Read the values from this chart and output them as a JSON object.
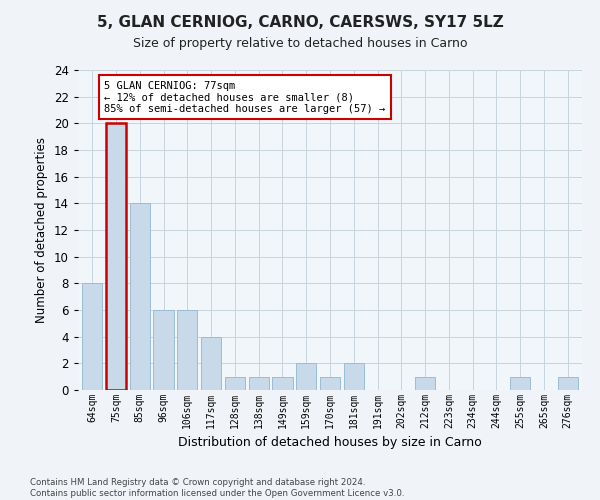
{
  "title": "5, GLAN CERNIOG, CARNO, CAERSWS, SY17 5LZ",
  "subtitle": "Size of property relative to detached houses in Carno",
  "xlabel": "Distribution of detached houses by size in Carno",
  "ylabel": "Number of detached properties",
  "categories": [
    "64sqm",
    "75sqm",
    "85sqm",
    "96sqm",
    "106sqm",
    "117sqm",
    "128sqm",
    "138sqm",
    "149sqm",
    "159sqm",
    "170sqm",
    "181sqm",
    "191sqm",
    "202sqm",
    "212sqm",
    "223sqm",
    "234sqm",
    "244sqm",
    "255sqm",
    "265sqm",
    "276sqm"
  ],
  "values": [
    8,
    20,
    14,
    6,
    6,
    4,
    1,
    1,
    1,
    2,
    1,
    2,
    0,
    0,
    1,
    0,
    0,
    0,
    1,
    0,
    1
  ],
  "highlight_index": 1,
  "bar_color": "#c8d9ea",
  "bar_edge_color": "#9bbcd4",
  "highlight_bar_color": "#c8d9ea",
  "highlight_edge_color": "#cc0000",
  "annotation_box_color": "#ffffff",
  "annotation_border_color": "#cc0000",
  "annotation_text_line1": "5 GLAN CERNIOG: 77sqm",
  "annotation_text_line2": "← 12% of detached houses are smaller (8)",
  "annotation_text_line3": "85% of semi-detached houses are larger (57) →",
  "ylim": [
    0,
    24
  ],
  "yticks": [
    0,
    2,
    4,
    6,
    8,
    10,
    12,
    14,
    16,
    18,
    20,
    22,
    24
  ],
  "footer_line1": "Contains HM Land Registry data © Crown copyright and database right 2024.",
  "footer_line2": "Contains public sector information licensed under the Open Government Licence v3.0.",
  "background_color": "#f0f4f8",
  "plot_background_color": "#f0f6fa",
  "grid_color": "#c8d4dc"
}
